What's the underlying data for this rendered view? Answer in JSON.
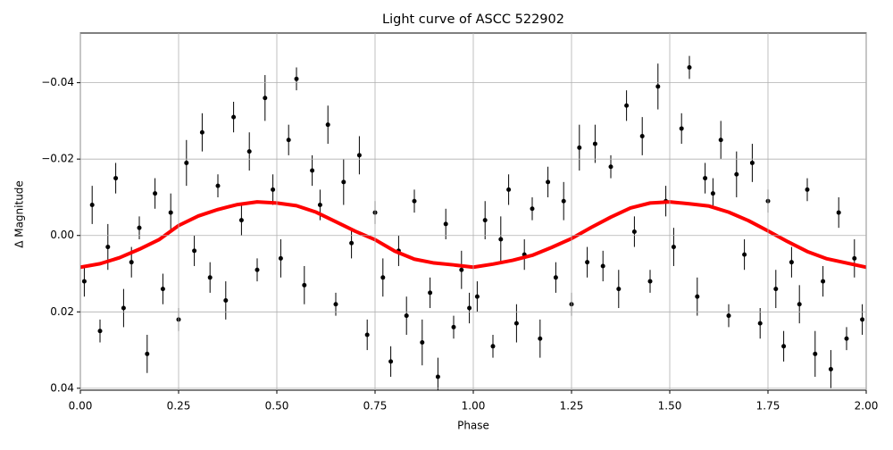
{
  "chart_data": {
    "type": "scatter",
    "title": "Light curve of ASCC 522902",
    "x_label": "Phase",
    "y_label": "Δ Magnitude",
    "xlim": [
      0,
      2
    ],
    "ylim": [
      -0.053,
      0.0405
    ],
    "y_inverted": true,
    "grid": true,
    "xticks": [
      {
        "value": 0,
        "label": "0.00"
      },
      {
        "value": 0.25,
        "label": "0.25"
      },
      {
        "value": 0.5,
        "label": "0.50"
      },
      {
        "value": 0.75,
        "label": "0.75"
      },
      {
        "value": 1,
        "label": "1.00"
      },
      {
        "value": 1.25,
        "label": "1.25"
      },
      {
        "value": 1.5,
        "label": "1.50"
      },
      {
        "value": 1.75,
        "label": "1.75"
      },
      {
        "value": 2,
        "label": "2.00"
      }
    ],
    "yticks": [
      {
        "value": -0.04,
        "label": "−0.04"
      },
      {
        "value": -0.02,
        "label": "−0.02"
      },
      {
        "value": 0,
        "label": "0.00"
      },
      {
        "value": 0.02,
        "label": "0.02"
      },
      {
        "value": 0.04,
        "label": "0.04"
      }
    ],
    "series": [
      {
        "type": "errorbar",
        "color": "#000000",
        "x": [
          0.01,
          0.03,
          0.05,
          0.07,
          0.09,
          0.11,
          0.13,
          0.15,
          0.17,
          0.19,
          0.21,
          0.23,
          0.25,
          0.27,
          0.29,
          0.31,
          0.33,
          0.35,
          0.37,
          0.39,
          0.41,
          0.43,
          0.45,
          0.47,
          0.49,
          0.51,
          0.53,
          0.55,
          0.57,
          0.59,
          0.61,
          0.63,
          0.65,
          0.67,
          0.69,
          0.71,
          0.73,
          0.75,
          0.77,
          0.79,
          0.81,
          0.83,
          0.85,
          0.87,
          0.89,
          0.91,
          0.93,
          0.95,
          0.97,
          0.99,
          1.01,
          1.03,
          1.05,
          1.07,
          1.09,
          1.11,
          1.13,
          1.15,
          1.17,
          1.19,
          1.21,
          1.23,
          1.25,
          1.27,
          1.29,
          1.31,
          1.33,
          1.35,
          1.37,
          1.39,
          1.41,
          1.43,
          1.45,
          1.47,
          1.49,
          1.51,
          1.53,
          1.55,
          1.57,
          1.59,
          1.61,
          1.63,
          1.65,
          1.67,
          1.69,
          1.71,
          1.73,
          1.75,
          1.77,
          1.79,
          1.81,
          1.83,
          1.85,
          1.87,
          1.89,
          1.91,
          1.93,
          1.95,
          1.97,
          1.99
        ],
        "values": [
          0.012,
          -0.008,
          0.025,
          0.003,
          -0.015,
          0.019,
          0.007,
          -0.002,
          0.031,
          -0.011,
          0.014,
          -0.006,
          0.022,
          -0.019,
          0.004,
          -0.027,
          0.011,
          -0.013,
          0.017,
          -0.031,
          -0.004,
          -0.022,
          0.009,
          -0.036,
          -0.012,
          0.006,
          -0.025,
          -0.041,
          0.013,
          -0.017,
          -0.008,
          -0.029,
          0.018,
          -0.014,
          0.002,
          -0.021,
          0.026,
          -0.006,
          0.011,
          0.033,
          0.004,
          0.021,
          -0.009,
          0.028,
          0.015,
          0.037,
          -0.003,
          0.024,
          0.009,
          0.019,
          0.016,
          -0.004,
          0.029,
          0.001,
          -0.012,
          0.023,
          0.005,
          -0.007,
          0.027,
          -0.014,
          0.011,
          -0.009,
          0.018,
          -0.023,
          0.007,
          -0.024,
          0.008,
          -0.018,
          0.014,
          -0.034,
          -0.001,
          -0.026,
          0.012,
          -0.039,
          -0.009,
          0.003,
          -0.028,
          -0.044,
          0.016,
          -0.015,
          -0.011,
          -0.025,
          0.021,
          -0.016,
          0.005,
          -0.019,
          0.023,
          -0.009,
          0.014,
          0.029,
          0.007,
          0.018,
          -0.012,
          0.031,
          0.012,
          0.035,
          -0.006,
          0.027,
          0.006,
          0.022
        ],
        "errors": [
          0.004,
          0.005,
          0.003,
          0.006,
          0.004,
          0.005,
          0.004,
          0.003,
          0.005,
          0.004,
          0.004,
          0.005,
          0.003,
          0.006,
          0.004,
          0.005,
          0.004,
          0.003,
          0.005,
          0.004,
          0.004,
          0.005,
          0.003,
          0.006,
          0.004,
          0.005,
          0.004,
          0.003,
          0.005,
          0.004,
          0.004,
          0.005,
          0.003,
          0.006,
          0.004,
          0.005,
          0.004,
          0.003,
          0.005,
          0.004,
          0.004,
          0.005,
          0.003,
          0.006,
          0.004,
          0.005,
          0.004,
          0.003,
          0.005,
          0.004,
          0.004,
          0.005,
          0.003,
          0.006,
          0.004,
          0.005,
          0.004,
          0.003,
          0.005,
          0.004,
          0.004,
          0.005,
          0.003,
          0.006,
          0.004,
          0.005,
          0.004,
          0.003,
          0.005,
          0.004,
          0.004,
          0.005,
          0.003,
          0.006,
          0.004,
          0.005,
          0.004,
          0.003,
          0.005,
          0.004,
          0.004,
          0.005,
          0.003,
          0.006,
          0.004,
          0.005,
          0.004,
          0.003,
          0.005,
          0.004,
          0.004,
          0.005,
          0.003,
          0.006,
          0.004,
          0.005,
          0.004,
          0.003,
          0.005,
          0.004
        ]
      },
      {
        "type": "line",
        "color": "#ff0000",
        "x": [
          0,
          0.05,
          0.1,
          0.15,
          0.2,
          0.25,
          0.3,
          0.35,
          0.4,
          0.45,
          0.5,
          0.55,
          0.6,
          0.65,
          0.7,
          0.75,
          0.8,
          0.85,
          0.9,
          0.95,
          1,
          1.05,
          1.1,
          1.15,
          1.2,
          1.25,
          1.3,
          1.35,
          1.4,
          1.45,
          1.5,
          1.55,
          1.6,
          1.65,
          1.7,
          1.75,
          1.8,
          1.85,
          1.9,
          1.95,
          2
        ],
        "values": [
          0.0083,
          0.0074,
          0.0058,
          0.0036,
          0.0011,
          -0.0026,
          -0.0051,
          -0.0068,
          -0.0081,
          -0.0088,
          -0.0085,
          -0.0078,
          -0.0061,
          -0.0036,
          -0.0011,
          0.0011,
          0.0041,
          0.0062,
          0.0072,
          0.0077,
          0.0083,
          0.0075,
          0.0065,
          0.0052,
          0.0031,
          0.0008,
          -0.0021,
          -0.0048,
          -0.0072,
          -0.0085,
          -0.0088,
          -0.0083,
          -0.0077,
          -0.0061,
          -0.0039,
          -0.0012,
          0.0016,
          0.0042,
          0.0061,
          0.0072,
          0.0083
        ]
      }
    ]
  }
}
